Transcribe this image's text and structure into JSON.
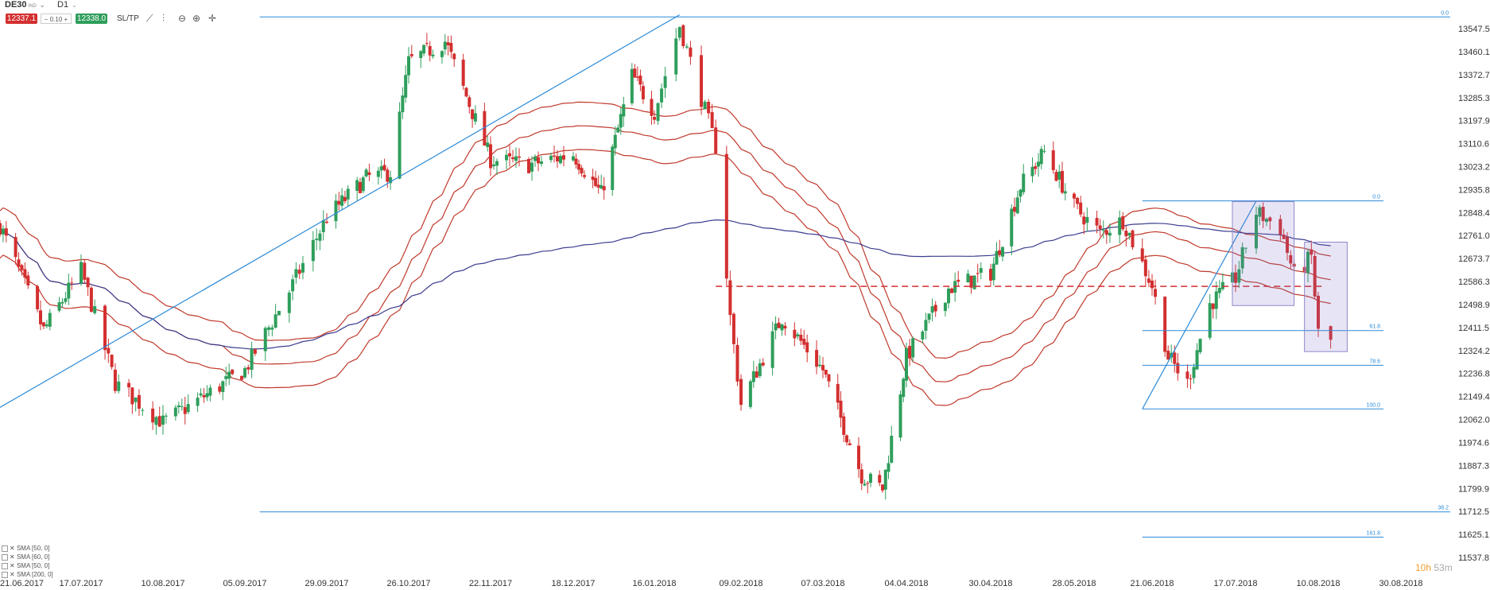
{
  "toolbar": {
    "symbol": "DE30",
    "symbol_sub": "IND",
    "timeframe": "D1",
    "sell_price": "12337.1",
    "spread_minus": "−",
    "spread_value": "0.10",
    "spread_plus": "+",
    "buy_price": "12338.0",
    "sltp_label": "SL/TP"
  },
  "indicators": [
    "SMA [50, 0]",
    "SMA [60, 0]",
    "SMA [50, 0]",
    "SMA [200, 0]"
  ],
  "timer": {
    "hours": "10h",
    "minutes": "53m"
  },
  "chart_data": {
    "type": "candlestick",
    "y_ticks": [
      "13547.5",
      "13460.1",
      "13372.7",
      "13285.3",
      "13197.9",
      "13110.6",
      "13023.2",
      "12935.8",
      "12848.4",
      "12761.0",
      "12673.7",
      "12586.3",
      "12498.9",
      "12411.5",
      "12324.2",
      "12236.8",
      "12149.4",
      "12062.0",
      "11974.6",
      "11887.3",
      "11799.9",
      "11712.5",
      "11625.1",
      "11537.8"
    ],
    "ylim": [
      11537.8,
      13547.5
    ],
    "x_ticks": [
      "21.06.2017",
      "17.07.2017",
      "10.08.2017",
      "05.09.2017",
      "29.09.2017",
      "26.10.2017",
      "22.11.2017",
      "18.12.2017",
      "16.01.2018",
      "09.02.2018",
      "07.03.2018",
      "04.04.2018",
      "30.04.2018",
      "28.05.2018",
      "21.06.2018",
      "17.07.2018",
      "10.08.2018",
      "30.08.2018"
    ],
    "fib_left": [
      {
        "label": "0.0",
        "value": 13592
      },
      {
        "label": "38.2",
        "value": 11711
      }
    ],
    "fib_right": [
      {
        "label": "0.0",
        "value": 12893
      },
      {
        "label": "61.8",
        "value": 12400
      },
      {
        "label": "78.6",
        "value": 12268
      },
      {
        "label": "100.0",
        "value": 12102
      },
      {
        "label": "161.8",
        "value": 11615
      }
    ],
    "support_level": 12568,
    "anchors": [
      {
        "x": "21.06.2017",
        "close": 12800
      },
      {
        "x": "05.07.2017",
        "close": 12400
      },
      {
        "x": "17.07.2017",
        "close": 12630
      },
      {
        "x": "27.07.2017",
        "close": 12200
      },
      {
        "x": "10.08.2017",
        "close": 12050
      },
      {
        "x": "23.08.2017",
        "close": 12150
      },
      {
        "x": "05.09.2017",
        "close": 12250
      },
      {
        "x": "18.09.2017",
        "close": 12550
      },
      {
        "x": "29.09.2017",
        "close": 12830
      },
      {
        "x": "12.10.2017",
        "close": 12980
      },
      {
        "x": "20.10.2017",
        "close": 13000
      },
      {
        "x": "26.10.2017",
        "close": 13420
      },
      {
        "x": "07.11.2017",
        "close": 13500
      },
      {
        "x": "22.11.2017",
        "close": 13050
      },
      {
        "x": "04.12.2017",
        "close": 13030
      },
      {
        "x": "18.12.2017",
        "close": 13070
      },
      {
        "x": "28.12.2017",
        "close": 12920
      },
      {
        "x": "08.01.2018",
        "close": 13370
      },
      {
        "x": "16.01.2018",
        "close": 13230
      },
      {
        "x": "23.01.2018",
        "close": 13560
      },
      {
        "x": "02.02.2018",
        "close": 13100
      },
      {
        "x": "06.02.2018",
        "close": 12450
      },
      {
        "x": "09.02.2018",
        "close": 12120
      },
      {
        "x": "22.02.2018",
        "close": 12450
      },
      {
        "x": "07.03.2018",
        "close": 12250
      },
      {
        "x": "20.03.2018",
        "close": 11850
      },
      {
        "x": "27.03.2018",
        "close": 11800
      },
      {
        "x": "04.04.2018",
        "close": 12300
      },
      {
        "x": "17.04.2018",
        "close": 12560
      },
      {
        "x": "30.04.2018",
        "close": 12620
      },
      {
        "x": "10.05.2018",
        "close": 12950
      },
      {
        "x": "18.05.2018",
        "close": 13080
      },
      {
        "x": "28.05.2018",
        "close": 12870
      },
      {
        "x": "05.06.2018",
        "close": 12770
      },
      {
        "x": "12.06.2018",
        "close": 12820
      },
      {
        "x": "21.06.2018",
        "close": 12570
      },
      {
        "x": "26.06.2018",
        "close": 12300
      },
      {
        "x": "02.07.2018",
        "close": 12200
      },
      {
        "x": "09.07.2018",
        "close": 12500
      },
      {
        "x": "17.07.2018",
        "close": 12600
      },
      {
        "x": "23.07.2018",
        "close": 12850
      },
      {
        "x": "30.07.2018",
        "close": 12790
      },
      {
        "x": "03.08.2018",
        "close": 12610
      },
      {
        "x": "08.08.2018",
        "close": 12680
      },
      {
        "x": "10.08.2018",
        "close": 12390
      },
      {
        "x": "13.08.2018",
        "close": 12360
      }
    ]
  }
}
